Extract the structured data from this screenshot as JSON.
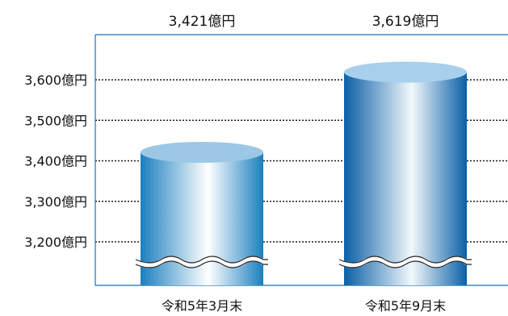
{
  "chart_data": {
    "type": "bar",
    "categories": [
      "令和5年3月末",
      "令和5年9月末"
    ],
    "values": [
      3421,
      3619
    ],
    "value_labels": [
      "3,421億円",
      "3,619億円"
    ],
    "ticks": [
      3200,
      3300,
      3400,
      3500,
      3600
    ],
    "tick_labels": [
      "3,200億円",
      "3,300億円",
      "3,400億円",
      "3,500億円",
      "3,600億円"
    ],
    "ylim": [
      3200,
      3600
    ],
    "axis_break": true,
    "grid": true,
    "colors": {
      "bar1_edge": "#1b7fbf",
      "bar1_mid": "#ffffff",
      "bar1_top": "#9cc8e6",
      "bar2_edge": "#0a5fa6",
      "bar2_mid": "#f2f8fc",
      "bar2_top": "#a8d0ec",
      "axis": "#1b72b5",
      "grid": "#1a1a1a"
    }
  }
}
